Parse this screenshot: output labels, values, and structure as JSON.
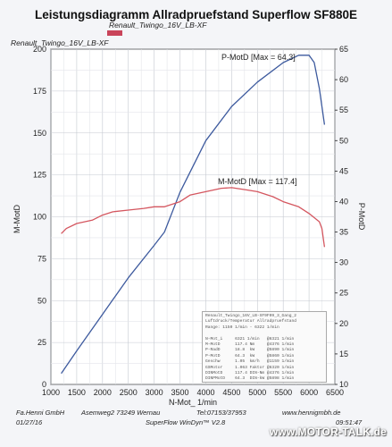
{
  "header": {
    "title": "Leistungsdiagramm Allradpruefstand Superflow SF880E",
    "vehicle_line_1": "Renault_Twingo_16V_LB-XF",
    "vehicle_line_2": "Renault_Twingo_16V_LB-XF"
  },
  "colors": {
    "power": "#3d5a9e",
    "torque": "#d4565f",
    "marker": "#c9445a"
  },
  "chart_data": {
    "type": "line",
    "xlabel": "N-Mot_ 1/min",
    "ylabel_left": "M-MotD",
    "ylabel_right": "P-MotD",
    "xlim": [
      1000,
      6500
    ],
    "ylim_left": [
      0,
      200
    ],
    "ylim_right": [
      10,
      65
    ],
    "x_ticks": [
      "1000",
      "1500",
      "2000",
      "2500",
      "3000",
      "3500",
      "4000",
      "4500",
      "5000",
      "5500",
      "6000",
      "6500"
    ],
    "y_left_ticks": [
      "0",
      "25",
      "50",
      "75",
      "100",
      "125",
      "150",
      "175",
      "200"
    ],
    "y_right_ticks": [
      "10",
      "15",
      "20",
      "25",
      "30",
      "35",
      "40",
      "45",
      "50",
      "55",
      "60",
      "65"
    ],
    "grid": true,
    "series": [
      {
        "name": "P-MotD",
        "axis": "right",
        "label": "P-MotD [Max = 64.3]",
        "x": [
          1200,
          1500,
          2000,
          2500,
          3000,
          3200,
          3500,
          4000,
          4500,
          5000,
          5500,
          5800,
          6000,
          6100,
          6200,
          6300
        ],
        "y": [
          11.8,
          15.5,
          21.5,
          27.5,
          32.8,
          35.0,
          41.5,
          50.0,
          55.6,
          59.6,
          62.8,
          64.0,
          64.0,
          62.8,
          58.5,
          52.6
        ]
      },
      {
        "name": "M-MotD",
        "axis": "left",
        "label": "M-MotD [Max = 117.4]",
        "x": [
          1200,
          1300,
          1500,
          1800,
          2000,
          2200,
          2500,
          2800,
          3000,
          3200,
          3500,
          3700,
          4000,
          4300,
          4500,
          4800,
          5000,
          5300,
          5500,
          5800,
          6000,
          6200,
          6250,
          6300
        ],
        "y": [
          90,
          93,
          96,
          98,
          101,
          103,
          104,
          105,
          106,
          106,
          109,
          113,
          115,
          117,
          117.4,
          116,
          115,
          112,
          109,
          106,
          102,
          97,
          93,
          82
        ]
      }
    ]
  },
  "legend_lines": [
    "Renault_Twingo_16V_LB-XF9F09_3_Gang_2",
    "Luftdruck/Temperatur Allradpruefstand",
    "Range: 1150 1/min - 6322 1/min",
    "",
    "N-Mot_i     6321 1/min   @6321 1/min",
    "M-MotD      117.4 Nm     @4376 1/min",
    "P-RadD      18.8  kW     @5890 1/min",
    "P-MotD      64.3  kW     @5860 1/min",
    "Geschw      1.05  km/h   @1159 1/min",
    "GSMotor     1.063 Faktor @6320 1/min",
    "DINMotD     117.4 DIN-Nm @4376 1/min",
    "DINPMotD    64.3  DIN-kW @5898 1/min",
    "P-MotD:  87.4 DIN-PS @5894 1/min"
  ],
  "footer": {
    "company": "Fa.Henni GmbH",
    "address": "Asemweg2  73249 Wernau",
    "phone": "Tel:07153/37953",
    "website": "www.hennigmbh.de",
    "date": "01/27/16",
    "software": "SuperFlow WinDyn™ V2.8",
    "time": "09:51:47"
  },
  "watermark": "www.MOTOR-TALK.de"
}
